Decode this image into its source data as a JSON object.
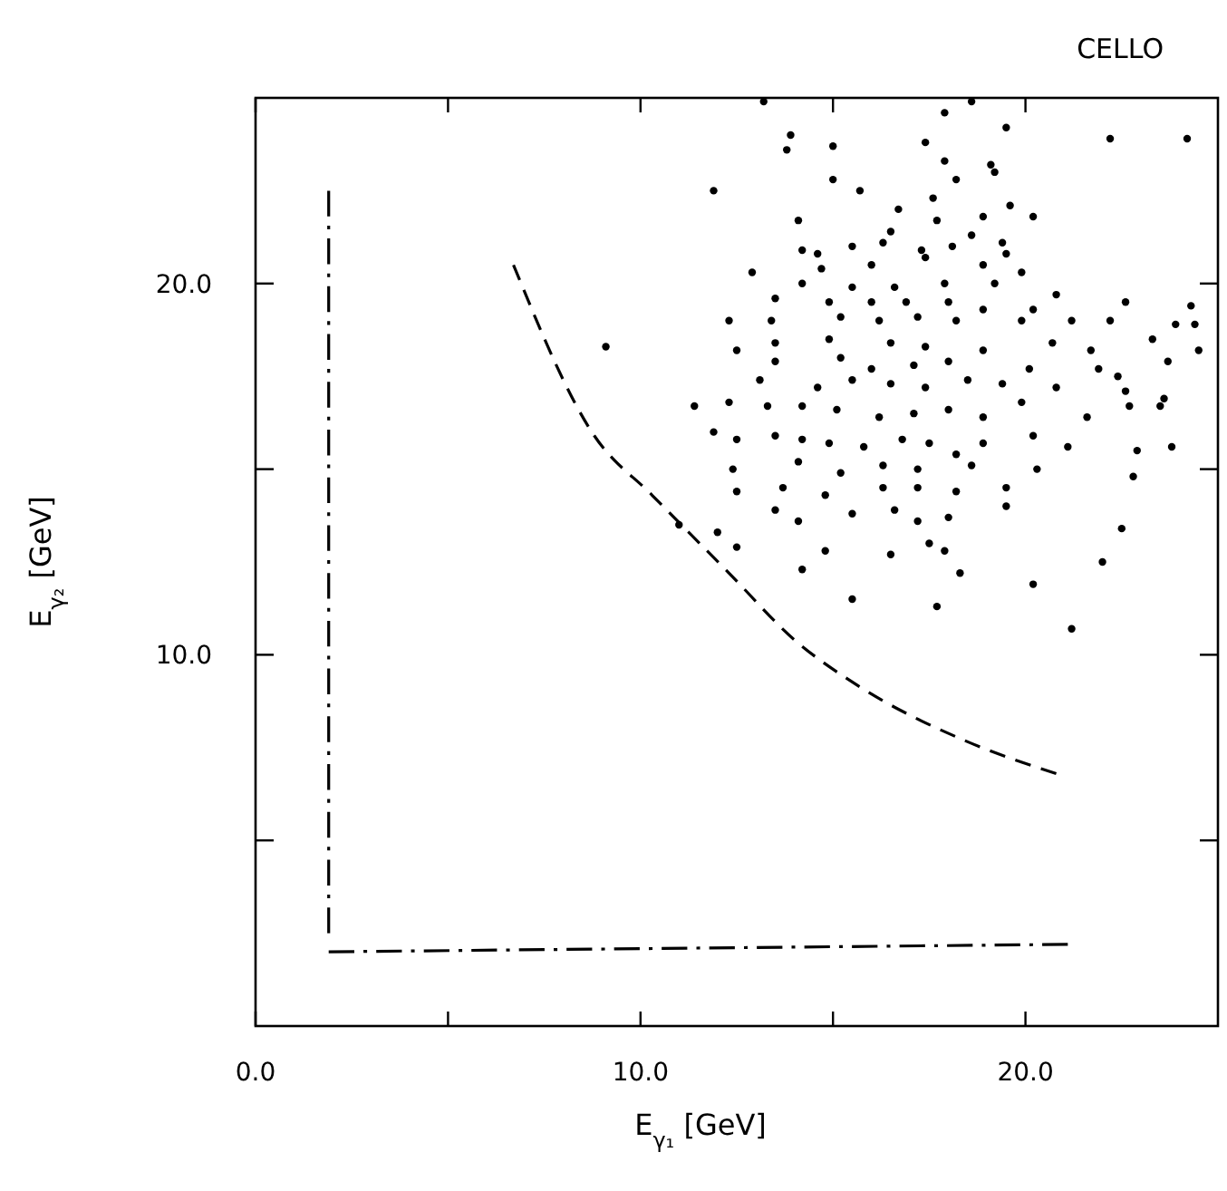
{
  "chart_data": {
    "type": "scatter",
    "title": "CELLO",
    "xlabel": "E$_{γ₁}$ [GeV]",
    "ylabel": "E$_{γ₂}$ [GeV]",
    "xlim": [
      0,
      25
    ],
    "ylim": [
      0,
      25
    ],
    "xticks": [
      {
        "value": 0,
        "label": "0.0"
      },
      {
        "value": 5,
        "label": null
      },
      {
        "value": 10,
        "label": "10.0"
      },
      {
        "value": 15,
        "label": null
      },
      {
        "value": 20,
        "label": "20.0"
      }
    ],
    "yticks": [
      {
        "value": 5,
        "label": null
      },
      {
        "value": 10,
        "label": "10.0"
      },
      {
        "value": 15,
        "label": null
      },
      {
        "value": 20,
        "label": "20.0"
      }
    ],
    "series": [
      {
        "color": "#000000",
        "marker": "circle",
        "x": [
          13.2,
          18.6,
          17.9,
          19.5,
          13.9,
          13.8,
          15.0,
          17.4,
          17.9,
          19.1,
          19.2,
          22.2,
          24.2,
          15.0,
          15.7,
          11.9,
          18.2,
          17.6,
          17.7,
          16.7,
          19.6,
          20.2,
          14.1,
          18.9,
          16.5,
          18.6,
          19.4,
          14.2,
          14.6,
          15.5,
          16.3,
          17.3,
          18.1,
          19.5,
          12.9,
          14.7,
          16.0,
          17.4,
          18.9,
          19.9,
          14.2,
          15.5,
          16.6,
          17.9,
          19.2,
          20.8,
          22.6,
          24.3,
          24.4,
          13.5,
          14.9,
          16.0,
          16.9,
          18.0,
          18.9,
          20.2,
          12.3,
          13.4,
          15.2,
          16.2,
          17.2,
          18.2,
          19.9,
          21.2,
          22.2,
          23.9,
          23.3,
          12.5,
          13.5,
          14.9,
          16.5,
          17.4,
          18.9,
          20.7,
          21.7,
          23.7,
          24.5,
          13.5,
          15.2,
          16.0,
          17.1,
          18.0,
          20.1,
          21.9,
          22.4,
          13.1,
          14.6,
          15.5,
          16.5,
          17.4,
          18.5,
          19.4,
          20.8,
          22.6,
          23.6,
          11.4,
          12.3,
          13.3,
          14.2,
          15.1,
          16.2,
          17.1,
          18.0,
          18.9,
          19.9,
          21.6,
          22.7,
          23.5,
          11.9,
          12.5,
          13.5,
          14.2,
          14.9,
          15.8,
          16.8,
          17.5,
          18.2,
          18.9,
          20.2,
          21.1,
          22.9,
          23.8,
          12.4,
          14.1,
          15.2,
          16.3,
          17.2,
          18.6,
          19.5,
          20.3,
          22.8,
          12.5,
          13.7,
          14.8,
          16.3,
          17.2,
          18.2,
          13.5,
          14.1,
          15.5,
          16.6,
          17.2,
          18.0,
          19.5,
          11.0,
          12.0,
          12.5,
          14.8,
          16.5,
          17.5,
          17.9,
          14.2,
          18.3,
          20.2,
          22.0,
          22.5,
          15.5,
          17.7,
          21.2,
          9.1
        ],
        "values": [
          24.9,
          24.9,
          24.6,
          24.2,
          24.0,
          23.6,
          23.7,
          23.8,
          23.3,
          23.2,
          23.0,
          23.9,
          23.9,
          22.8,
          22.5,
          22.5,
          22.8,
          22.3,
          21.7,
          22.0,
          22.1,
          21.8,
          21.7,
          21.8,
          21.4,
          21.3,
          21.1,
          20.9,
          20.8,
          21.0,
          21.1,
          20.9,
          21.0,
          20.8,
          20.3,
          20.4,
          20.5,
          20.7,
          20.5,
          20.3,
          20.0,
          19.9,
          19.9,
          20.0,
          20.0,
          19.7,
          19.5,
          19.4,
          18.9,
          19.6,
          19.5,
          19.5,
          19.5,
          19.5,
          19.3,
          19.3,
          19.0,
          19.0,
          19.1,
          19.0,
          19.1,
          19.0,
          19.0,
          19.0,
          19.0,
          18.9,
          18.5,
          18.2,
          18.4,
          18.5,
          18.4,
          18.3,
          18.2,
          18.4,
          18.2,
          17.9,
          18.2,
          17.9,
          18.0,
          17.7,
          17.8,
          17.9,
          17.7,
          17.7,
          17.5,
          17.4,
          17.2,
          17.4,
          17.3,
          17.2,
          17.4,
          17.3,
          17.2,
          17.1,
          16.9,
          16.7,
          16.8,
          16.7,
          16.7,
          16.6,
          16.4,
          16.5,
          16.6,
          16.4,
          16.8,
          16.4,
          16.7,
          16.7,
          16.0,
          15.8,
          15.9,
          15.8,
          15.7,
          15.6,
          15.8,
          15.7,
          15.4,
          15.7,
          15.9,
          15.6,
          15.5,
          15.6,
          15.0,
          15.2,
          14.9,
          15.1,
          15.0,
          15.1,
          14.5,
          15.0,
          14.8,
          14.4,
          14.5,
          14.3,
          14.5,
          14.5,
          14.4,
          13.9,
          13.6,
          13.8,
          13.9,
          13.6,
          13.7,
          14.0,
          13.5,
          13.3,
          12.9,
          12.8,
          12.7,
          13.0,
          12.8,
          12.3,
          12.2,
          11.9,
          12.5,
          13.4,
          11.5,
          11.3,
          10.7,
          18.3
        ]
      },
      {
        "type": "line",
        "color": "#000000",
        "line_style": "dashed",
        "x": [
          6.7,
          8.8,
          10.3,
          12.3,
          14.0,
          15.6,
          18.4,
          20.8
        ],
        "values": [
          20.5,
          15.9,
          14.3,
          12.2,
          10.4,
          9.2,
          7.7,
          6.8
        ]
      },
      {
        "type": "line",
        "color": "#000000",
        "line_style": "dashdot",
        "x": [
          1.9,
          1.9
        ],
        "values": [
          2.5,
          22.5
        ]
      },
      {
        "type": "line",
        "color": "#000000",
        "line_style": "dashdot",
        "x": [
          1.9,
          21.1
        ],
        "values": [
          2.0,
          2.2
        ]
      }
    ]
  }
}
